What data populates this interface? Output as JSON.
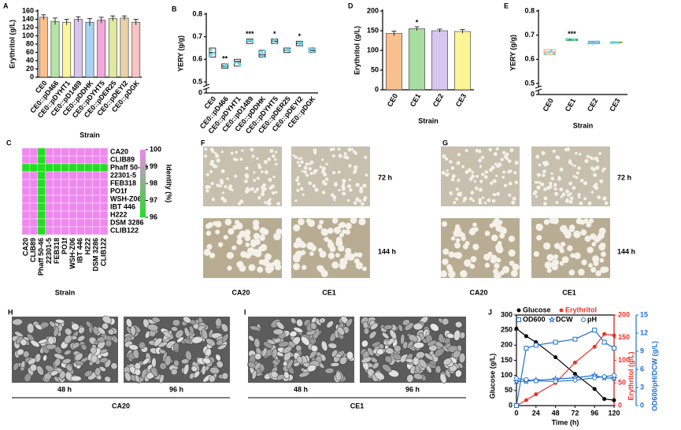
{
  "chart_data": [
    {
      "type": "bar",
      "panel": "A",
      "ylabel": "Erythritol (g/L)",
      "xlabel": "Strain",
      "categories": [
        "CE0",
        "CE0::pD466",
        "CE0::pDYHT1",
        "CE0::pD1489",
        "CE0::pDDHK",
        "CE0::pDYHT5",
        "CE0::pDER25",
        "CE0::pDEYI2",
        "CE0::pDGK"
      ],
      "values": [
        145,
        135,
        133,
        140,
        133,
        138,
        142,
        143,
        133
      ],
      "errors": [
        6,
        8,
        7,
        6,
        9,
        7,
        6,
        5,
        7
      ],
      "colors": [
        "#f9c08e",
        "#b6e3a6",
        "#fdf59a",
        "#d9c4ee",
        "#a9d3ef",
        "#f2a7d8",
        "#dfe89e",
        "#e8d2a6",
        "#f9c3c3"
      ],
      "ylim": [
        0,
        160
      ],
      "yticks": [
        0,
        20,
        40,
        60,
        80,
        100,
        120,
        140,
        160
      ]
    },
    {
      "type": "box",
      "panel": "B",
      "ylabel": "YERY (g/g)",
      "xlabel": "Strain",
      "categories": [
        "CE0",
        "CE0::pD466",
        "CE0::pDYHT1",
        "CE0::pD1489",
        "CE0::pDDHK",
        "CE0::pDYHT5",
        "CE0::pDER25",
        "CE0::pDEYI2",
        "CE0::pDGK"
      ],
      "median": [
        0.63,
        0.57,
        0.59,
        0.68,
        0.62,
        0.68,
        0.64,
        0.67,
        0.64
      ],
      "q1": [
        0.61,
        0.56,
        0.57,
        0.67,
        0.61,
        0.67,
        0.63,
        0.66,
        0.63
      ],
      "q3": [
        0.65,
        0.58,
        0.6,
        0.69,
        0.64,
        0.69,
        0.65,
        0.68,
        0.65
      ],
      "annotations": [
        null,
        "**",
        null,
        "***",
        null,
        "*",
        null,
        "*",
        null
      ],
      "colors": [
        "#333333",
        "#333333",
        "#333333",
        "#333333",
        "#333333",
        "#333333",
        "#333333",
        "#333333",
        "#333333"
      ],
      "ylim": [
        0,
        0.8
      ],
      "ybreak": [
        0,
        0.5
      ],
      "yticks": [
        0,
        0.5,
        0.6,
        0.7,
        0.8
      ]
    },
    {
      "type": "heatmap",
      "panel": "C",
      "xlabel": "Strain",
      "colorbar_label": "Identity (%)",
      "labels": [
        "CA20",
        "CLIB89",
        "Phaff 50-46",
        "22301-5",
        "FEB318",
        "PO1f",
        "WSH-Z06",
        "IBT 446",
        "H222",
        "DSM 3286",
        "CLIB122"
      ],
      "values": [
        [
          100,
          100,
          96,
          100,
          100,
          100,
          100,
          100,
          100,
          100,
          100
        ],
        [
          100,
          100,
          96,
          100,
          100,
          100,
          100,
          100,
          100,
          100,
          100
        ],
        [
          96,
          96,
          96,
          96,
          96,
          96,
          96,
          96,
          96,
          96,
          96
        ],
        [
          100,
          100,
          96,
          100,
          100,
          100,
          100,
          100,
          100,
          100,
          100
        ],
        [
          100,
          100,
          96,
          100,
          100,
          100,
          100,
          100,
          100,
          100,
          100
        ],
        [
          100,
          100,
          96,
          100,
          100,
          100,
          100,
          100,
          100,
          100,
          100
        ],
        [
          100,
          100,
          96,
          100,
          100,
          100,
          100,
          100,
          100,
          100,
          100
        ],
        [
          100,
          100,
          96,
          100,
          100,
          100,
          100,
          100,
          100,
          100,
          100
        ],
        [
          100,
          100,
          96,
          100,
          100,
          100,
          100,
          100,
          100,
          100,
          100
        ],
        [
          100,
          100,
          96,
          100,
          100,
          100,
          100,
          100,
          100,
          100,
          100
        ],
        [
          100,
          100,
          96,
          100,
          100,
          100,
          100,
          100,
          100,
          100,
          100
        ]
      ],
      "low_color": "#22dd22",
      "high_color": "#ee88ee",
      "clim": [
        96,
        100
      ],
      "cticks": [
        96,
        97,
        98,
        99,
        100
      ]
    },
    {
      "type": "bar",
      "panel": "D",
      "ylabel": "Erythritol (g/L)",
      "xlabel": "Strain",
      "categories": [
        "CE0",
        "CE1",
        "CE2",
        "CE3"
      ],
      "values": [
        143,
        155,
        150,
        148
      ],
      "errors": [
        6,
        5,
        4,
        5
      ],
      "annotations": [
        null,
        "*",
        null,
        null
      ],
      "colors": [
        "#f9c08e",
        "#a9dca0",
        "#d7c6ee",
        "#fbf596"
      ],
      "ylim": [
        0,
        200
      ],
      "yticks": [
        0,
        50,
        100,
        150,
        200
      ]
    },
    {
      "type": "box",
      "panel": "E",
      "ylabel": "YERY (g/g)",
      "xlabel": "Strain",
      "categories": [
        "CE0",
        "CE1",
        "CE2",
        "CE3"
      ],
      "median": [
        0.63,
        0.68,
        0.67,
        0.67
      ],
      "q1": [
        0.62,
        0.678,
        0.665,
        0.668
      ],
      "q3": [
        0.64,
        0.684,
        0.675,
        0.672
      ],
      "annotations": [
        null,
        "***",
        null,
        null
      ],
      "colors": [
        "#f0a070",
        "#3caa3c",
        "#9a7fcf",
        "#9aa030"
      ],
      "ylim": [
        0,
        0.8
      ],
      "ybreak": [
        0,
        0.5
      ],
      "yticks": [
        0,
        0.5,
        0.6,
        0.7,
        0.8
      ]
    },
    {
      "type": "line",
      "panel": "J",
      "xlabel": "Time (h)",
      "ylabel": "Glucose (g/L)",
      "y2label": "Erythritol (g/L)",
      "y3label": "OD600/pH/DCW (g/L)",
      "x": [
        0,
        12,
        24,
        48,
        72,
        96,
        108,
        120
      ],
      "xlim": [
        0,
        120
      ],
      "xticks": [
        0,
        24,
        48,
        72,
        96,
        120
      ],
      "ylim": [
        0,
        300
      ],
      "yticks": [
        0,
        50,
        100,
        150,
        200,
        250,
        300
      ],
      "y2lim": [
        0,
        200
      ],
      "y2ticks": [
        0,
        50,
        100,
        150,
        200
      ],
      "y3lim": [
        0,
        15
      ],
      "y3ticks": [
        0,
        3,
        6,
        9,
        12,
        15
      ],
      "y2color": "#e8322c",
      "y3color": "#1f6fd1",
      "series": [
        {
          "name": "Glucose",
          "color": "#000000",
          "marker": "circle",
          "axis": "y",
          "values": [
            255,
            230,
            210,
            160,
            105,
            55,
            22,
            18
          ]
        },
        {
          "name": "Erythritol",
          "color": "#e8322c",
          "marker": "circle",
          "axis": "y2",
          "values": [
            0,
            12,
            25,
            50,
            95,
            130,
            158,
            155
          ]
        },
        {
          "name": "OD600",
          "color": "#1f6fd1",
          "marker": "open-square",
          "axis": "y3",
          "values": [
            0,
            9.5,
            10,
            10.5,
            11,
            12.5,
            10.5,
            9.5
          ]
        },
        {
          "name": "DCW",
          "color": "#1f6fd1",
          "marker": "star",
          "axis": "y3",
          "values": [
            4,
            4,
            4.2,
            4.4,
            4.6,
            5,
            4.6,
            4.5
          ]
        },
        {
          "name": "pH",
          "color": "#1f6fd1",
          "marker": "open-circle",
          "axis": "y3",
          "values": [
            4.5,
            4.3,
            4.1,
            4,
            4.2,
            4.6,
            4.8,
            5
          ]
        }
      ]
    }
  ],
  "plate_panels": [
    {
      "panel": "F",
      "rows": [
        "72 h",
        "144 h"
      ],
      "columns": [
        "CA20",
        "CE1"
      ]
    },
    {
      "panel": "G",
      "rows": [
        "72 h",
        "144 h"
      ],
      "columns": [
        "CA20",
        "CE1"
      ]
    }
  ],
  "sem_panels": [
    {
      "panel": "H",
      "times": [
        "48 h",
        "96 h"
      ],
      "strain": "CA20"
    },
    {
      "panel": "I",
      "times": [
        "48 h",
        "96 h"
      ],
      "strain": "CE1"
    }
  ]
}
